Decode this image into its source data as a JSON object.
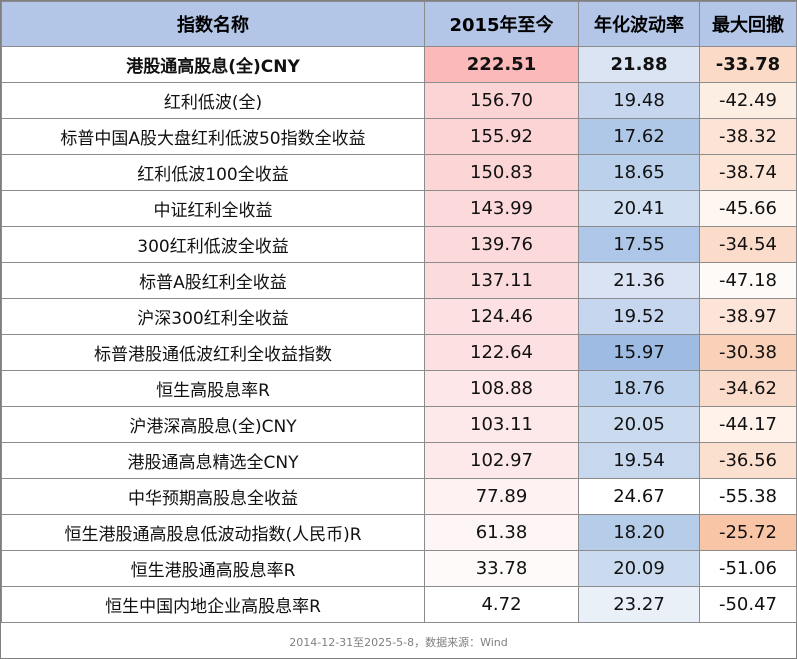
{
  "table": {
    "headers": [
      "指数名称",
      "2015年至今",
      "年化波动率",
      "最大回撤"
    ],
    "rows": [
      {
        "name": "港股通高股息(全)CNY",
        "ret": "222.51",
        "vol": "21.88",
        "dd": "-33.78",
        "bold": true,
        "ret_color": "#fbb9ba",
        "vol_color": "#dbe4f3",
        "dd_color": "#fbdac7"
      },
      {
        "name": "红利低波(全)",
        "ret": "156.70",
        "vol": "19.48",
        "dd": "-42.49",
        "bold": false,
        "ret_color": "#fcd4d5",
        "vol_color": "#c5d6ee",
        "dd_color": "#fdeee4"
      },
      {
        "name": "标普中国A股大盘红利低波50指数全收益",
        "ret": "155.92",
        "vol": "17.62",
        "dd": "-38.32",
        "bold": false,
        "ret_color": "#fcd4d5",
        "vol_color": "#afc8e8",
        "dd_color": "#fce3d5"
      },
      {
        "name": "红利低波100全收益",
        "ret": "150.83",
        "vol": "18.65",
        "dd": "-38.74",
        "bold": false,
        "ret_color": "#fcd6d7",
        "vol_color": "#bbd0eb",
        "dd_color": "#fce4d6"
      },
      {
        "name": "中证红利全收益",
        "ret": "143.99",
        "vol": "20.41",
        "dd": "-45.66",
        "bold": false,
        "ret_color": "#fcd9da",
        "vol_color": "#d0deF1",
        "dd_color": "#fef6f1"
      },
      {
        "name": "300红利低波全收益",
        "ret": "139.76",
        "vol": "17.55",
        "dd": "-34.54",
        "bold": false,
        "ret_color": "#fcdadb",
        "vol_color": "#aec7e8",
        "dd_color": "#fbdccb"
      },
      {
        "name": "标普A股红利全收益",
        "ret": "137.11",
        "vol": "21.36",
        "dd": "-47.18",
        "bold": false,
        "ret_color": "#fcdbdc",
        "vol_color": "#dae3f3",
        "dd_color": "#fefaf7"
      },
      {
        "name": "沪深300红利全收益",
        "ret": "124.46",
        "vol": "19.52",
        "dd": "-38.97",
        "bold": false,
        "ret_color": "#fde0e1",
        "vol_color": "#c5d6ee",
        "dd_color": "#fce5d8"
      },
      {
        "name": "标普港股通低波红利全收益指数",
        "ret": "122.64",
        "vol": "15.97",
        "dd": "-30.38",
        "bold": false,
        "ret_color": "#fde1e2",
        "vol_color": "#9dbbe3",
        "dd_color": "#f9d0b8"
      },
      {
        "name": "恒生高股息率R",
        "ret": "108.88",
        "vol": "18.76",
        "dd": "-34.62",
        "bold": false,
        "ret_color": "#fde7e8",
        "vol_color": "#bcd1ec",
        "dd_color": "#fbdccb"
      },
      {
        "name": "沪港深高股息(全)CNY",
        "ret": "103.11",
        "vol": "20.05",
        "dd": "-44.17",
        "bold": false,
        "ret_color": "#fde9ea",
        "vol_color": "#cbdbef",
        "dd_color": "#fef2ea"
      },
      {
        "name": "港股通高息精选全CNY",
        "ret": "102.97",
        "vol": "19.54",
        "dd": "-36.56",
        "bold": false,
        "ret_color": "#fde9ea",
        "vol_color": "#c6d7ee",
        "dd_color": "#fbe0cf"
      },
      {
        "name": "中华预期高股息全收益",
        "ret": "77.89",
        "vol": "24.67",
        "dd": "-55.38",
        "bold": false,
        "ret_color": "#fef2f2",
        "vol_color": "#ffffff",
        "dd_color": "#ffffff"
      },
      {
        "name": "恒生港股通高股息低波动指数(人民币)R",
        "ret": "61.38",
        "vol": "18.20",
        "dd": "-25.72",
        "bold": false,
        "ret_color": "#fef6f6",
        "vol_color": "#b6cdea",
        "dd_color": "#f8c5a6"
      },
      {
        "name": "恒生港股通高股息率R",
        "ret": "33.78",
        "vol": "20.09",
        "dd": "-51.06",
        "bold": false,
        "ret_color": "#fffafa",
        "vol_color": "#cbdbef",
        "dd_color": "#ffffff"
      },
      {
        "name": "恒生中国内地企业高股息率R",
        "ret": "4.72",
        "vol": "23.27",
        "dd": "-50.47",
        "bold": false,
        "ret_color": "#ffffff",
        "vol_color": "#eaf0f8",
        "dd_color": "#ffffff"
      }
    ]
  },
  "footer": "2014-12-31至2025-5-8，数据来源：Wind"
}
